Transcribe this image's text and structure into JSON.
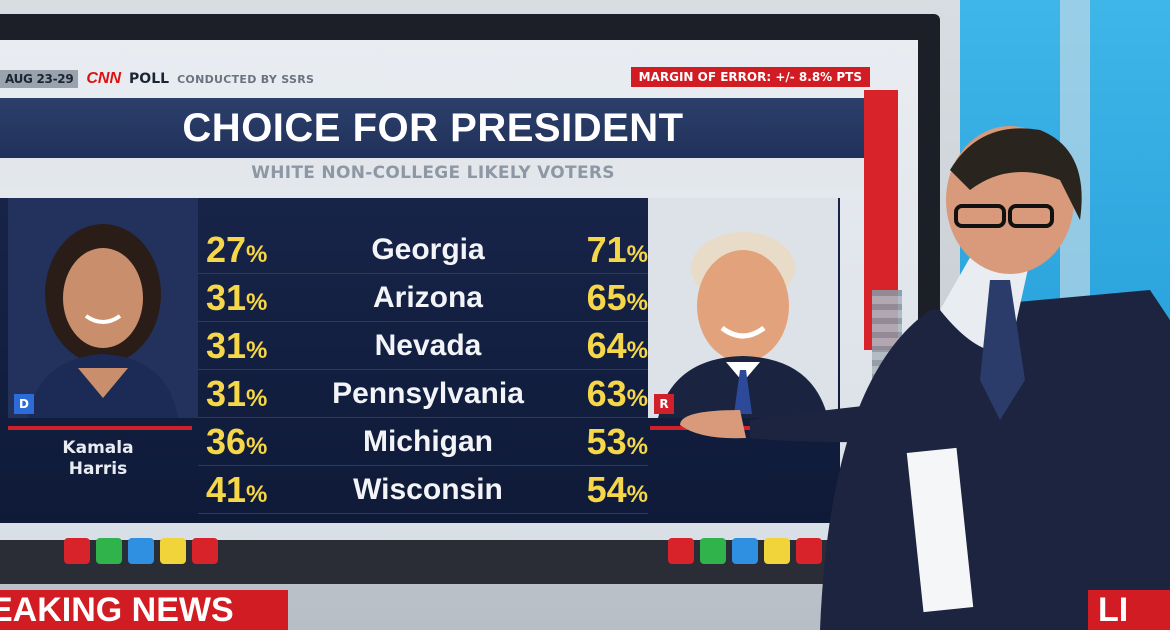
{
  "header": {
    "date": "AUG 23-29",
    "logo": "CNN",
    "poll_word": "POLL",
    "conducted_by": "CONDUCTED BY SSRS",
    "margin_of_error": "MARGIN OF ERROR: +/- 8.8% PTS"
  },
  "title": "CHOICE FOR PRESIDENT",
  "subtitle": "WHITE NON-COLLEGE LIKELY VOTERS",
  "candidates": {
    "left": {
      "name": "Kamala\nHarris",
      "party": "D"
    },
    "right": {
      "party": "R"
    }
  },
  "rows": [
    {
      "state": "Georgia",
      "left_pct": "27",
      "right_pct": "71"
    },
    {
      "state": "Arizona",
      "left_pct": "31",
      "right_pct": "65"
    },
    {
      "state": "Nevada",
      "left_pct": "31",
      "right_pct": "64"
    },
    {
      "state": "Pennsylvania",
      "left_pct": "31",
      "right_pct": "63"
    },
    {
      "state": "Michigan",
      "left_pct": "36",
      "right_pct": "53"
    },
    {
      "state": "Wisconsin",
      "left_pct": "41",
      "right_pct": "54"
    }
  ],
  "percent_sign": "%",
  "banner": {
    "left_text": "EAKING NEWS",
    "right_text": "LI"
  },
  "colors": {
    "brand_red": "#d01c22",
    "number_yellow": "#f6d749",
    "panel_navy": "#172448",
    "dem_blue": "#2c6bd8"
  },
  "pucks_left": [
    "#d9232b",
    "#2fb34a",
    "#2f8fe0",
    "#f1d43a",
    "#d9232b"
  ],
  "pucks_right": [
    "#d9232b",
    "#2fb34a",
    "#2f8fe0",
    "#f1d43a",
    "#d9232b"
  ]
}
